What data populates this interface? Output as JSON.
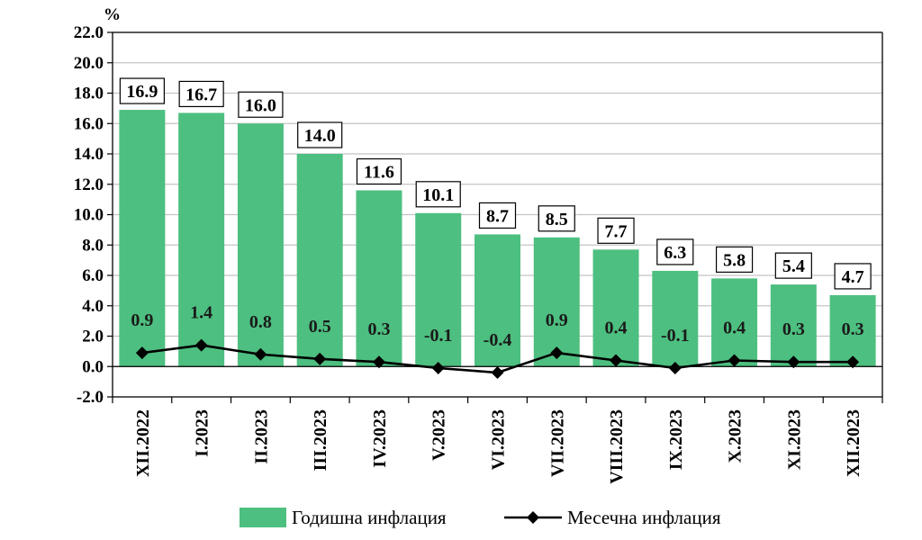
{
  "chart_data": {
    "type": "bar",
    "unit": "%",
    "categories": [
      "XII.2022",
      "I.2023",
      "II.2023",
      "III.2023",
      "IV.2023",
      "V.2023",
      "VI.2023",
      "VII.2023",
      "VIII.2023",
      "IX.2023",
      "X.2023",
      "XI.2023",
      "XII.2023"
    ],
    "series": [
      {
        "name": "Годишна инфлация",
        "type": "bar",
        "color": "#4dbf80",
        "values": [
          16.9,
          16.7,
          16.0,
          14.0,
          11.6,
          10.1,
          8.7,
          8.5,
          7.7,
          6.3,
          5.8,
          5.4,
          4.7
        ],
        "labels": [
          "16.9",
          "16.7",
          "16.0",
          "14.0",
          "11.6",
          "10.1",
          "8.7",
          "8.5",
          "7.7",
          "6.3",
          "5.8",
          "5.4",
          "4.7"
        ]
      },
      {
        "name": "Месечна инфлация",
        "type": "line",
        "color": "#000000",
        "values": [
          0.9,
          1.4,
          0.8,
          0.5,
          0.3,
          -0.1,
          -0.4,
          0.9,
          0.4,
          -0.1,
          0.4,
          0.3,
          0.3
        ],
        "labels": [
          "0.9",
          "1.4",
          "0.8",
          "0.5",
          "0.3",
          "-0.1",
          "-0.4",
          "0.9",
          "0.4",
          "-0.1",
          "0.4",
          "0.3",
          "0.3"
        ]
      }
    ],
    "y_ticks": [
      "-2.0",
      "0.0",
      "2.0",
      "4.0",
      "6.0",
      "8.0",
      "10.0",
      "12.0",
      "14.0",
      "16.0",
      "18.0",
      "20.0",
      "22.0"
    ],
    "ylim": [
      -2,
      22
    ],
    "grid": true,
    "legend_position": "bottom"
  }
}
